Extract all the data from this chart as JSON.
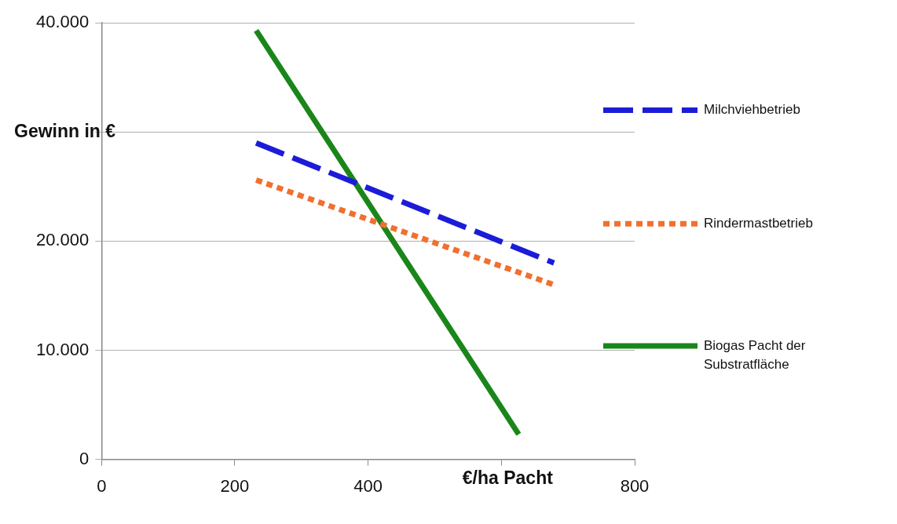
{
  "chart_data": {
    "type": "line",
    "xlabel": "€/ha Pacht",
    "ylabel": "Gewinn in €",
    "xlim": [
      0,
      800
    ],
    "xticks": [
      0,
      200,
      400,
      {
        "value": 600,
        "label": null
      },
      800
    ],
    "ylim": [
      0,
      40000
    ],
    "yticks": [
      {
        "value": 0,
        "label": "0"
      },
      {
        "value": 10000,
        "label": "10.000"
      },
      {
        "value": 20000,
        "label": "20.000"
      },
      {
        "value": 30000,
        "label": null
      },
      {
        "value": 40000,
        "label": "40.000"
      }
    ],
    "grid": "y",
    "legend": "right",
    "marker": "none",
    "series": [
      {
        "name": "Milchviehbetrieb",
        "color": "#1c1cd8",
        "x": [
          232,
          679
        ],
        "values": [
          29000,
          18000
        ],
        "line_style": "dashed"
      },
      {
        "name": "Rindermastbetrieb",
        "color": "#f07030",
        "x": [
          232,
          679
        ],
        "values": [
          25600,
          16000
        ],
        "line_style": "dotted"
      },
      {
        "name": "Biogas Pacht der Substratfläche",
        "color": "#1a861a",
        "x": [
          232,
          626
        ],
        "values": [
          39300,
          2300
        ],
        "line_style": "solid"
      }
    ]
  }
}
